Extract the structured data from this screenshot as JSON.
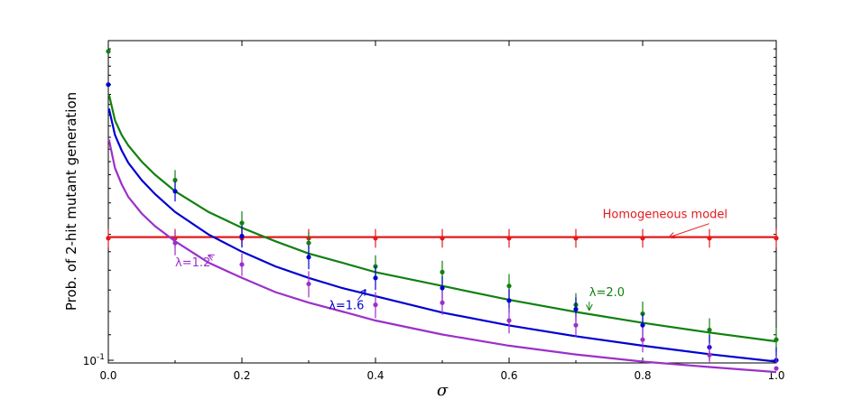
{
  "chart_data": {
    "type": "line",
    "xlabel": "σ",
    "ylabel": "Prob. of 2-hit mutant generation",
    "x_ticks": [
      "0.0",
      "0.2",
      "0.4",
      "0.6",
      "0.8",
      "1.0"
    ],
    "y_tick_label": {
      "base": "10",
      "exponent": "-1"
    },
    "y_scale": "log",
    "xlim": [
      0,
      1
    ],
    "ylim": [
      0.099,
      0.33
    ],
    "grid": false,
    "series": [
      {
        "color": "#e31a1c",
        "curve": {
          "kind": "constant",
          "value": 0.1584
        },
        "points": {
          "x": [
            0,
            0.1,
            0.2,
            0.3,
            0.4,
            0.5,
            0.6,
            0.7,
            0.8,
            0.9,
            1.0
          ],
          "y": [
            0.1578,
            0.1578,
            0.1578,
            0.1578,
            0.1578,
            0.1578,
            0.1578,
            0.1578,
            0.1578,
            0.1578,
            0.1578
          ],
          "err": [
            0.0055,
            0.0055,
            0.0055,
            0.0055,
            0.0055,
            0.0055,
            0.0055,
            0.0055,
            0.0055,
            0.0055,
            0.0055
          ]
        }
      },
      {
        "color": "#118011",
        "curve": {
          "x": [
            0.001,
            0.01,
            0.02,
            0.03,
            0.05,
            0.07,
            0.1,
            0.15,
            0.2,
            0.25,
            0.3,
            0.35,
            0.4,
            0.5,
            0.6,
            0.7,
            0.8,
            0.9,
            1.0
          ],
          "y": [
            0.27,
            0.245,
            0.232,
            0.223,
            0.21,
            0.2,
            0.188,
            0.174,
            0.164,
            0.156,
            0.149,
            0.144,
            0.139,
            0.132,
            0.1253,
            0.1198,
            0.115,
            0.1109,
            0.1073
          ]
        },
        "points": {
          "x": [
            0,
            0.1,
            0.2,
            0.3,
            0.4,
            0.5,
            0.6,
            0.7,
            0.8,
            0.9,
            1.0
          ],
          "y": [
            0.317,
            0.196,
            0.167,
            0.155,
            0.142,
            0.139,
            0.132,
            0.123,
            0.119,
            0.112,
            0.108
          ],
          "err": [
            0,
            0.0075,
            0.0075,
            0.0065,
            0.006,
            0.006,
            0.006,
            0.0055,
            0.0055,
            0.005,
            0.005
          ]
        }
      },
      {
        "color": "#0000d0",
        "curve": {
          "x": [
            0.001,
            0.01,
            0.02,
            0.03,
            0.05,
            0.07,
            0.1,
            0.15,
            0.2,
            0.25,
            0.3,
            0.35,
            0.4,
            0.5,
            0.6,
            0.7,
            0.8,
            0.9,
            1.0
          ],
          "y": [
            0.256,
            0.232,
            0.219,
            0.209,
            0.196,
            0.186,
            0.174,
            0.16,
            0.15,
            0.142,
            0.136,
            0.131,
            0.127,
            0.1195,
            0.1139,
            0.1094,
            0.1056,
            0.1023,
            0.0995
          ]
        },
        "points": {
          "x": [
            0,
            0.1,
            0.2,
            0.3,
            0.4,
            0.5,
            0.6,
            0.7,
            0.8,
            0.9,
            1.0
          ],
          "y": [
            0.28,
            0.188,
            0.159,
            0.147,
            0.136,
            0.131,
            0.125,
            0.121,
            0.114,
            0.105,
            0.1
          ],
          "err": [
            0,
            0.007,
            0.0065,
            0.0065,
            0.006,
            0.006,
            0.0055,
            0.0055,
            0.005,
            0.005,
            0.005
          ]
        }
      },
      {
        "color": "#9b30c9",
        "curve": {
          "x": [
            0.001,
            0.01,
            0.02,
            0.03,
            0.05,
            0.07,
            0.1,
            0.15,
            0.2,
            0.25,
            0.3,
            0.35,
            0.4,
            0.5,
            0.6,
            0.7,
            0.8,
            0.9,
            1.0
          ],
          "y": [
            0.228,
            0.205,
            0.193,
            0.184,
            0.173,
            0.165,
            0.156,
            0.144,
            0.136,
            0.129,
            0.124,
            0.12,
            0.116,
            0.1101,
            0.1056,
            0.1022,
            0.0995,
            0.0975,
            0.0957
          ]
        },
        "points": {
          "x": [
            0.1,
            0.2,
            0.3,
            0.4,
            0.5,
            0.6,
            0.7,
            0.8,
            0.9,
            1.0
          ],
          "y": [
            0.155,
            0.143,
            0.133,
            0.123,
            0.124,
            0.116,
            0.114,
            0.108,
            0.102,
            0.097
          ],
          "err": [
            0.007,
            0.006,
            0.0065,
            0.006,
            0.0055,
            0.0055,
            0.005,
            0.005,
            0.0045,
            0.0045
          ]
        }
      }
    ],
    "annotations": [
      {
        "text": "Homogeneous model",
        "color": "#e31a1c",
        "at": [
          0.74,
          0.17
        ],
        "tip": [
          0.84,
          0.1584
        ]
      },
      {
        "text": "λ=2.0",
        "color": "#118011",
        "at": [
          0.72,
          0.127
        ],
        "tip": [
          0.72,
          0.1207
        ]
      },
      {
        "text": "λ=1.6",
        "color": "#0000d0",
        "at": [
          0.33,
          0.121
        ],
        "tip": [
          0.385,
          0.1301
        ]
      },
      {
        "text": "λ=1.2",
        "color": "#9b30c9",
        "at": [
          0.1,
          0.142
        ],
        "tip": [
          0.15,
          0.148
        ]
      }
    ]
  }
}
